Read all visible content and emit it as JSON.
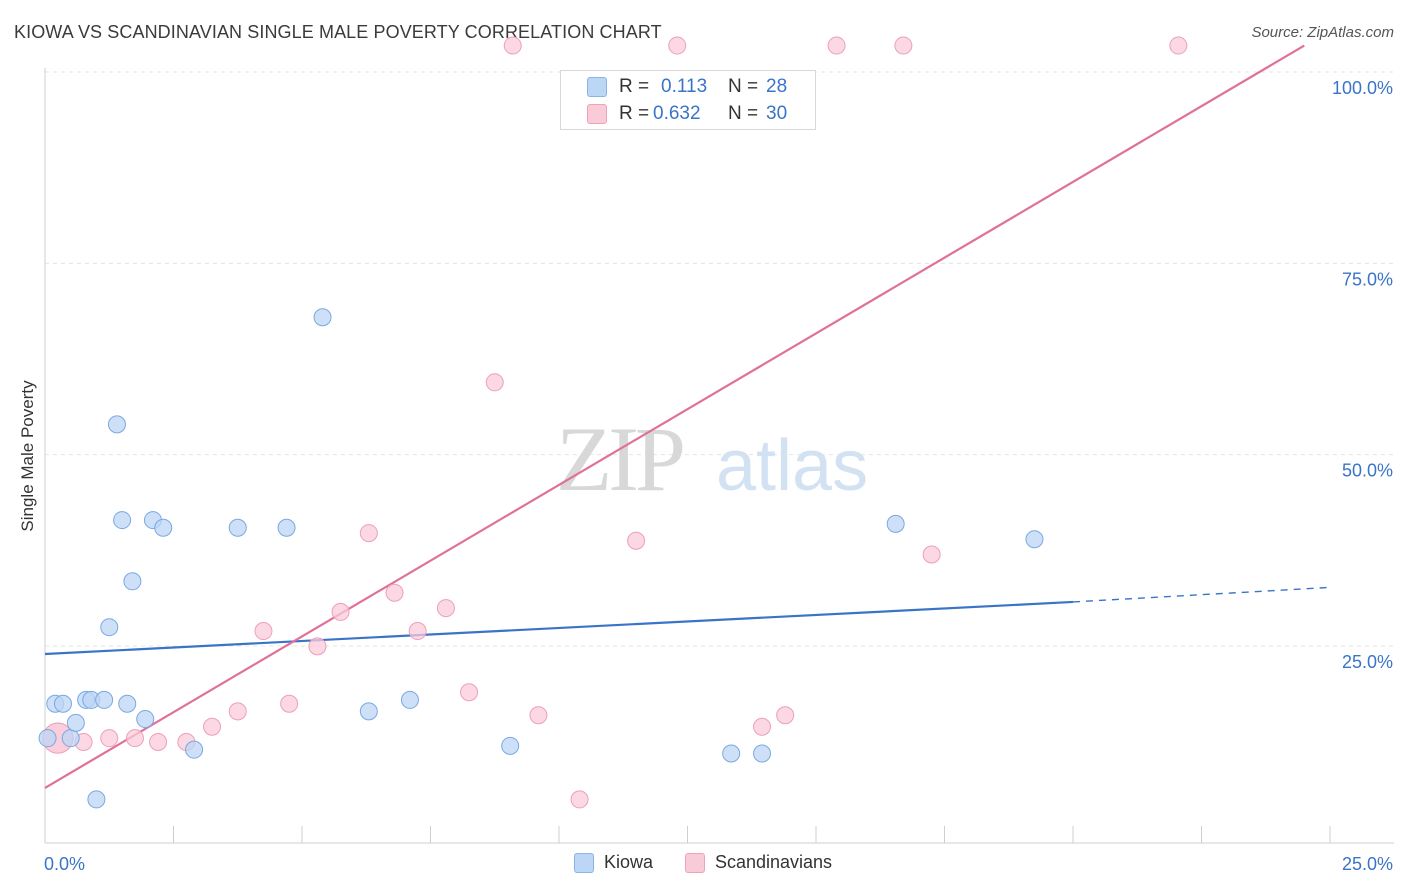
{
  "header": {
    "title": "KIOWA VS SCANDINAVIAN SINGLE MALE POVERTY CORRELATION CHART",
    "source": "Source: ZipAtlas.com"
  },
  "legend_top": {
    "r_label": "R =",
    "n_label": "N =",
    "rows": [
      {
        "series": "Kiowa",
        "r": "0.113",
        "n": "28"
      },
      {
        "series": "Scandinavians",
        "r": "0.632",
        "n": "30"
      }
    ]
  },
  "legend_bottom": {
    "items": [
      {
        "label": "Kiowa"
      },
      {
        "label": "Scandinavians"
      }
    ]
  },
  "watermark": {
    "zip": "ZIP",
    "atlas": "atlas"
  },
  "colors": {
    "blue_fill": "#bcd6f6",
    "blue_stroke": "#7aa8e2",
    "blue_line": "#3a74c8",
    "pink_fill": "#f9cbd9",
    "pink_stroke": "#ee9fb8",
    "pink_line": "#e0709a",
    "axis_text": "#3a74c8"
  },
  "chart_data": {
    "type": "scatter",
    "title": "KIOWA VS SCANDINAVIAN SINGLE MALE POVERTY CORRELATION CHART",
    "xlabel": "",
    "ylabel": "Single Male Poverty",
    "xlim": [
      0,
      25
    ],
    "ylim": [
      0,
      102.5
    ],
    "x_tick_labels": [
      "0.0%",
      "25.0%"
    ],
    "y_ticks": [
      25,
      50,
      75,
      100
    ],
    "y_tick_labels": [
      "25.0%",
      "50.0%",
      "75.0%",
      "100.0%"
    ],
    "grid": true,
    "series": [
      {
        "name": "Kiowa",
        "color": "#3a74c8",
        "points": [
          {
            "x": 0.05,
            "y": 14.0
          },
          {
            "x": 0.2,
            "y": 18.5
          },
          {
            "x": 0.35,
            "y": 18.5
          },
          {
            "x": 0.5,
            "y": 14.0
          },
          {
            "x": 0.6,
            "y": 16.0
          },
          {
            "x": 0.8,
            "y": 19.0
          },
          {
            "x": 0.9,
            "y": 19.0
          },
          {
            "x": 1.0,
            "y": 6.0
          },
          {
            "x": 1.15,
            "y": 19.0
          },
          {
            "x": 1.25,
            "y": 28.5
          },
          {
            "x": 1.4,
            "y": 55.0
          },
          {
            "x": 1.5,
            "y": 42.5
          },
          {
            "x": 1.6,
            "y": 18.5
          },
          {
            "x": 1.7,
            "y": 34.5
          },
          {
            "x": 1.95,
            "y": 16.5
          },
          {
            "x": 2.1,
            "y": 42.5
          },
          {
            "x": 2.3,
            "y": 41.5
          },
          {
            "x": 2.9,
            "y": 12.5
          },
          {
            "x": 3.75,
            "y": 41.5
          },
          {
            "x": 4.7,
            "y": 41.5
          },
          {
            "x": 5.4,
            "y": 69.0
          },
          {
            "x": 6.3,
            "y": 17.5
          },
          {
            "x": 7.1,
            "y": 19.0
          },
          {
            "x": 9.05,
            "y": 13.0
          },
          {
            "x": 13.35,
            "y": 12.0
          },
          {
            "x": 13.95,
            "y": 12.0
          },
          {
            "x": 16.55,
            "y": 42.0
          },
          {
            "x": 19.25,
            "y": 40.0
          }
        ],
        "trend": {
          "x0": 0,
          "y0": 25.0,
          "x1": 20.0,
          "y1": 31.8,
          "dashed_to_x": 25,
          "dashed_to_y": 33.7
        }
      },
      {
        "name": "Scandinavians",
        "color": "#e0709a",
        "points": [
          {
            "x": 0.25,
            "y": 14.0
          },
          {
            "x": 0.75,
            "y": 13.5
          },
          {
            "x": 1.25,
            "y": 14.0
          },
          {
            "x": 1.75,
            "y": 14.0
          },
          {
            "x": 2.2,
            "y": 13.5
          },
          {
            "x": 2.75,
            "y": 13.5
          },
          {
            "x": 3.25,
            "y": 15.5
          },
          {
            "x": 3.75,
            "y": 17.5
          },
          {
            "x": 4.25,
            "y": 28.0
          },
          {
            "x": 4.75,
            "y": 18.5
          },
          {
            "x": 5.3,
            "y": 26.0
          },
          {
            "x": 5.75,
            "y": 30.5
          },
          {
            "x": 6.3,
            "y": 40.8
          },
          {
            "x": 6.8,
            "y": 33.0
          },
          {
            "x": 7.25,
            "y": 28.0
          },
          {
            "x": 7.8,
            "y": 31.0
          },
          {
            "x": 8.25,
            "y": 20.0
          },
          {
            "x": 8.75,
            "y": 60.5
          },
          {
            "x": 9.1,
            "y": 104.5
          },
          {
            "x": 9.6,
            "y": 17.0
          },
          {
            "x": 10.4,
            "y": 6.0
          },
          {
            "x": 11.5,
            "y": 39.8
          },
          {
            "x": 12.3,
            "y": 104.5
          },
          {
            "x": 13.95,
            "y": 15.5
          },
          {
            "x": 14.4,
            "y": 17.0
          },
          {
            "x": 15.4,
            "y": 104.5
          },
          {
            "x": 16.7,
            "y": 104.5
          },
          {
            "x": 17.25,
            "y": 38.0
          },
          {
            "x": 22.05,
            "y": 104.5
          },
          {
            "x": 0.25,
            "y": 14.0
          }
        ],
        "trend": {
          "x0": 0,
          "y0": 7.5,
          "x1": 24.5,
          "y1": 104.5
        }
      }
    ]
  }
}
